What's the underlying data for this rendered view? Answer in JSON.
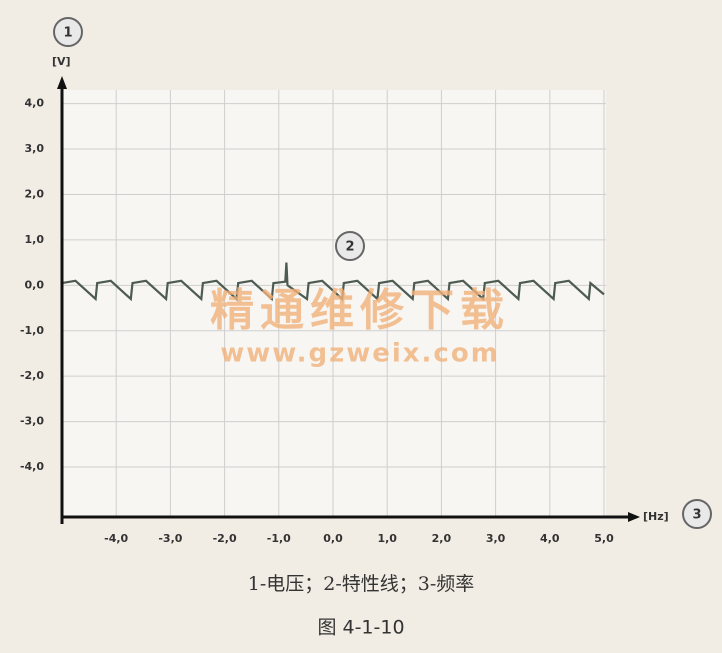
{
  "chart_data": {
    "type": "line",
    "y_label": "[V]",
    "x_label": "[Hz]",
    "annotations": [
      "1",
      "2",
      "3"
    ],
    "caption": "1-电压；2-特性线；3-频率",
    "figure_label": "图 4-1-10",
    "watermark": [
      "精通维修下载",
      "www.gzweix.com"
    ],
    "color": "#4d5b52",
    "grid": true,
    "xlim": [
      -5,
      5
    ],
    "ylim": [
      -5.1,
      4.3
    ],
    "xticks": [
      {
        "value": -4,
        "label": "-4,0"
      },
      {
        "value": -3,
        "label": "-3,0"
      },
      {
        "value": -2,
        "label": "-2,0"
      },
      {
        "value": -1,
        "label": "-1,0"
      },
      {
        "value": 0,
        "label": "0,0"
      },
      {
        "value": 1,
        "label": "1,0"
      },
      {
        "value": 2,
        "label": "2,0"
      },
      {
        "value": 3,
        "label": "3,0"
      },
      {
        "value": 4,
        "label": "4,0"
      },
      {
        "value": 5,
        "label": "5,0"
      }
    ],
    "yticks": [
      {
        "value": -4,
        "label": "-4,0"
      },
      {
        "value": -3,
        "label": "-3,0"
      },
      {
        "value": -2,
        "label": "-2,0"
      },
      {
        "value": -1,
        "label": "-1,0"
      },
      {
        "value": 0,
        "label": "0,0"
      },
      {
        "value": 1,
        "label": "1,0"
      },
      {
        "value": 2,
        "label": "2,0"
      },
      {
        "value": 3,
        "label": "3,0"
      },
      {
        "value": 4,
        "label": "4,0"
      }
    ],
    "x": [
      -5,
      -4.75,
      -4.38,
      -4.35,
      -4.1,
      -3.73,
      -3.7,
      -3.45,
      -3.08,
      -3.05,
      -2.8,
      -2.43,
      -2.4,
      -2.15,
      -1.78,
      -1.75,
      -1.5,
      -1.13,
      -1.1,
      -0.88,
      -0.86,
      -0.84,
      -0.48,
      -0.45,
      -0.2,
      0.17,
      0.2,
      0.45,
      0.82,
      0.85,
      1.1,
      1.47,
      1.5,
      1.75,
      2.12,
      2.15,
      2.4,
      2.77,
      2.8,
      3.05,
      3.42,
      3.45,
      3.7,
      4.07,
      4.1,
      4.35,
      4.72,
      4.75,
      5.0
    ],
    "values": [
      0.05,
      0.1,
      -0.3,
      0.05,
      0.1,
      -0.3,
      0.05,
      0.1,
      -0.3,
      0.05,
      0.1,
      -0.3,
      0.05,
      0.1,
      -0.3,
      0.05,
      0.1,
      -0.3,
      0.05,
      0.08,
      0.5,
      0.0,
      -0.3,
      0.05,
      0.1,
      -0.3,
      0.05,
      0.1,
      -0.3,
      0.05,
      0.1,
      -0.3,
      0.05,
      0.1,
      -0.3,
      0.05,
      0.1,
      -0.3,
      0.05,
      0.1,
      -0.3,
      0.05,
      0.1,
      -0.3,
      0.05,
      0.1,
      -0.3,
      0.05,
      -0.2
    ]
  }
}
